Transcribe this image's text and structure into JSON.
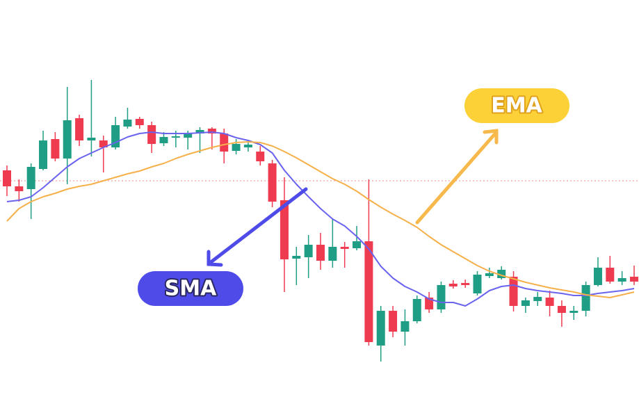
{
  "chart_data": {
    "type": "candlestick",
    "open": [
      355,
      332,
      328,
      357,
      400,
      372,
      430,
      398,
      398,
      388,
      418,
      429,
      420,
      394,
      402,
      402,
      408,
      415,
      408,
      383,
      388,
      382,
      365,
      312,
      228,
      230,
      248,
      225,
      245,
      243,
      253,
      103,
      153,
      123,
      138,
      172,
      155,
      192,
      193,
      178,
      203,
      200,
      202,
      160,
      167,
      172,
      160,
      150,
      153,
      190,
      215,
      195,
      202
    ],
    "high": [
      362,
      342,
      365,
      412,
      410,
      475,
      435,
      485,
      405,
      432,
      445,
      432,
      425,
      410,
      412,
      412,
      417,
      417,
      415,
      400,
      395,
      390,
      370,
      345,
      245,
      262,
      265,
      285,
      252,
      275,
      342,
      160,
      160,
      155,
      175,
      180,
      195,
      197,
      198,
      210,
      215,
      217,
      210,
      172,
      180,
      182,
      168,
      160,
      195,
      230,
      232,
      210,
      218
    ],
    "low": [
      318,
      310,
      285,
      355,
      368,
      335,
      390,
      375,
      352,
      385,
      415,
      415,
      380,
      390,
      388,
      385,
      380,
      385,
      365,
      378,
      382,
      362,
      302,
      180,
      190,
      200,
      212,
      215,
      215,
      240,
      103,
      80,
      115,
      103,
      135,
      150,
      150,
      185,
      186,
      175,
      200,
      198,
      152,
      150,
      160,
      145,
      130,
      140,
      145,
      188,
      192,
      190,
      190
    ],
    "close": [
      332,
      325,
      360,
      398,
      372,
      427,
      398,
      402,
      388,
      420,
      428,
      420,
      393,
      403,
      404,
      408,
      413,
      408,
      382,
      393,
      392,
      368,
      310,
      227,
      232,
      248,
      225,
      245,
      242,
      253,
      108,
      153,
      123,
      138,
      170,
      155,
      190,
      188,
      190,
      205,
      207,
      212,
      160,
      168,
      173,
      160,
      150,
      153,
      190,
      215,
      195,
      200,
      195
    ],
    "up_color": "#1f9e85",
    "down_color": "#ef3b50",
    "series": [
      {
        "name": "SMA",
        "color": "#6a63ee",
        "values": [
          310,
          312,
          317,
          330,
          345,
          360,
          372,
          380,
          388,
          395,
          403,
          408,
          410,
          408,
          408,
          408,
          409,
          410,
          408,
          402,
          398,
          392,
          380,
          355,
          335,
          317,
          300,
          285,
          275,
          260,
          242,
          217,
          200,
          188,
          180,
          170,
          165,
          165,
          160,
          170,
          182,
          188,
          190,
          185,
          182,
          180,
          178,
          175,
          175,
          178,
          180,
          182,
          185
        ]
      },
      {
        "name": "EMA",
        "color": "#f6b04a",
        "values": [
          282,
          300,
          310,
          317,
          322,
          328,
          332,
          335,
          340,
          345,
          350,
          354,
          360,
          365,
          372,
          378,
          383,
          388,
          392,
          395,
          396,
          395,
          390,
          382,
          373,
          363,
          353,
          343,
          335,
          325,
          313,
          302,
          292,
          283,
          273,
          260,
          248,
          238,
          228,
          218,
          210,
          204,
          199,
          194,
          190,
          186,
          183,
          180,
          176,
          174,
          172,
          176,
          180
        ]
      }
    ],
    "ylim": [
      6,
      600
    ],
    "reference_line": {
      "value": 340,
      "color": "#f08a8a"
    },
    "annotation_colors": [
      "#4f4be8",
      "#fbd137"
    ]
  }
}
